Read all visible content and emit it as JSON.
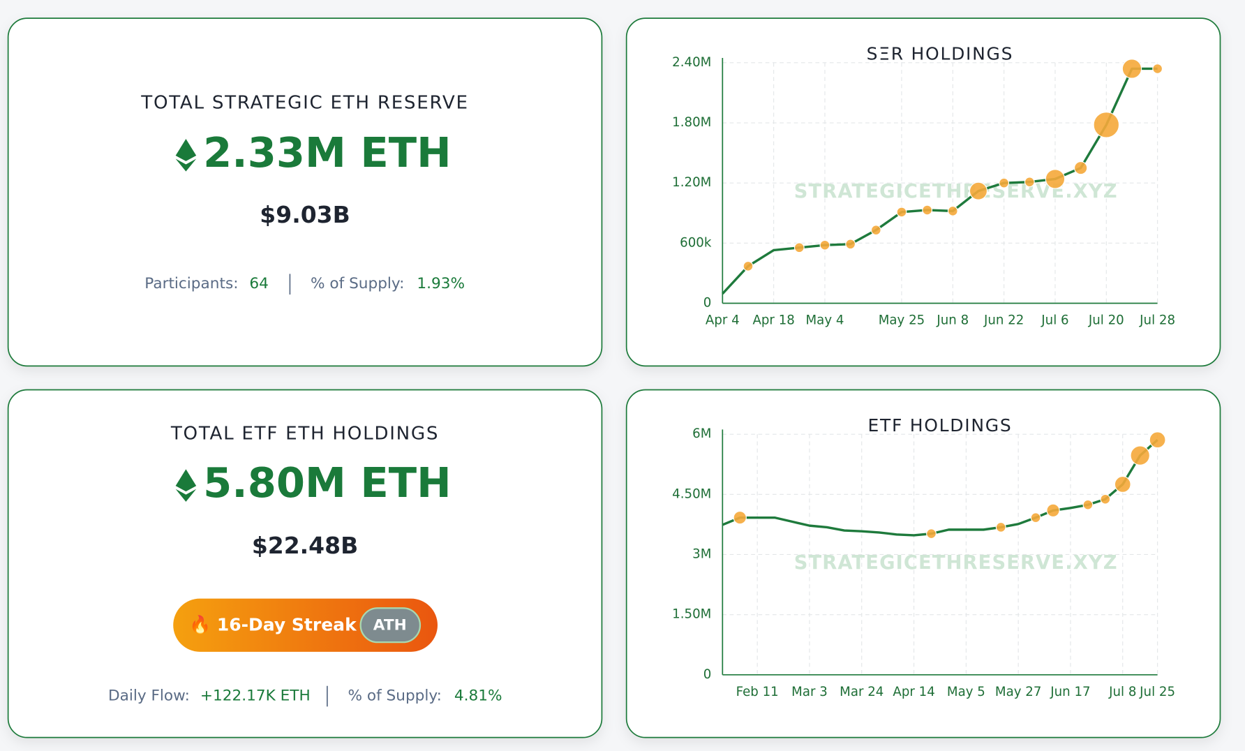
{
  "reserve_card": {
    "title": "TOTAL STRATEGIC ETH RESERVE",
    "amount": "2.33M ETH",
    "usd": "$9.03B",
    "participants_label": "Participants:",
    "participants": "64",
    "supply_label": "% of Supply:",
    "supply": "1.93%"
  },
  "etf_card": {
    "title": "TOTAL ETF ETH HOLDINGS",
    "amount": "5.80M ETH",
    "usd": "$22.48B",
    "streak": "🔥 16-Day Streak",
    "badge": "ATH",
    "flow_label": "Daily Flow:",
    "flow": "+122.17K ETH",
    "supply_label": "% of Supply:",
    "supply": "4.81%"
  },
  "chart_data": [
    {
      "type": "line",
      "title": "SΞR HOLDINGS",
      "watermark": "STRATEGICETHRESERVE.XYZ",
      "color": "#1e7a3c",
      "marker_color": "#f5a83a",
      "grid": true,
      "categories": [
        "Apr 4",
        null,
        "Apr 18",
        null,
        "May 4",
        null,
        null,
        "May 25",
        null,
        "Jun 8",
        null,
        "Jun 22",
        null,
        "Jul 6",
        null,
        "Jul 20",
        null,
        "Jul 28"
      ],
      "values": [
        95000,
        370000,
        530000,
        555000,
        580000,
        590000,
        730000,
        910000,
        930000,
        920000,
        1120000,
        1200000,
        1210000,
        1240000,
        1350000,
        1780000,
        2340000,
        2340000
      ],
      "sizes": [
        null,
        6,
        null,
        6,
        6,
        6,
        6,
        6,
        6,
        6,
        11,
        6,
        6,
        12,
        8,
        16,
        12,
        6
      ],
      "ylim": [
        0,
        2400000
      ],
      "yticks": [
        0,
        {
          "value": 600000,
          "label": "600k"
        },
        {
          "value": 1200000,
          "label": "1.20M"
        },
        {
          "value": 1800000,
          "label": "1.80M"
        },
        {
          "value": 2400000,
          "label": "2.40M"
        }
      ]
    },
    {
      "type": "line",
      "title": "ETF HOLDINGS",
      "watermark": "STRATEGICETHRESERVE.XYZ",
      "color": "#1e7a3c",
      "marker_color": "#f5a83a",
      "grid": true,
      "categories": [
        null,
        null,
        "Feb 11",
        null,
        null,
        "Mar 3",
        null,
        null,
        "Mar 24",
        null,
        null,
        "Apr 14",
        null,
        null,
        "May 5",
        null,
        null,
        "May 27",
        null,
        null,
        "Jun 17",
        null,
        null,
        "Jul 8",
        null,
        "Jul 25"
      ],
      "values": [
        3740000,
        3920000,
        3920000,
        3920000,
        3820000,
        3720000,
        3680000,
        3600000,
        3580000,
        3550000,
        3500000,
        3480000,
        3520000,
        3620000,
        3620000,
        3620000,
        3680000,
        3760000,
        3920000,
        4100000,
        4160000,
        4240000,
        4380000,
        4750000,
        5470000,
        5860000
      ],
      "sizes": [
        null,
        8,
        null,
        null,
        null,
        null,
        null,
        null,
        null,
        null,
        null,
        null,
        6,
        null,
        null,
        null,
        6,
        null,
        6,
        8,
        null,
        6,
        6,
        10,
        12,
        10
      ],
      "ylim": [
        0,
        6000000
      ],
      "yticks": [
        0,
        {
          "value": 1500000,
          "label": "1.50M"
        },
        {
          "value": 3000000,
          "label": "3M"
        },
        {
          "value": 4500000,
          "label": "4.50M"
        },
        {
          "value": 6000000,
          "label": "6M"
        }
      ]
    }
  ]
}
